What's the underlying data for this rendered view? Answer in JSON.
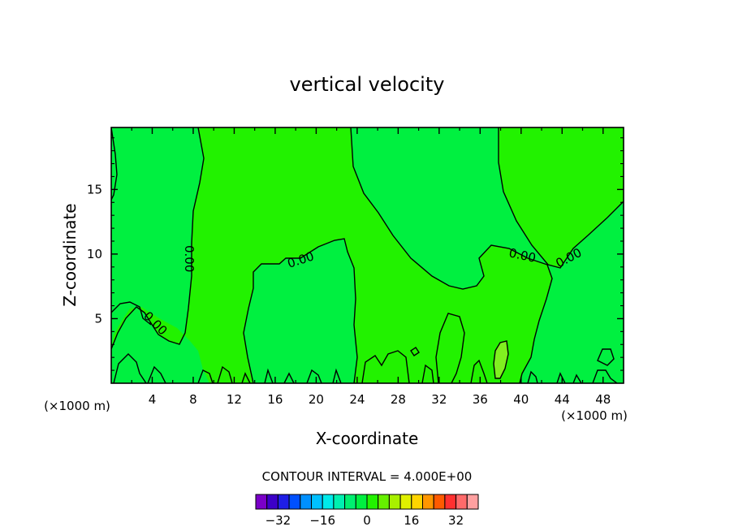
{
  "chart_data": {
    "type": "contour",
    "title": "vertical velocity",
    "xlabel": "X-coordinate",
    "ylabel": "Z-coordinate",
    "x_unit_left": "(×1000 m)",
    "x_unit_right": "(×1000 m)",
    "xlim": [
      0,
      50
    ],
    "ylim": [
      0,
      19.8
    ],
    "x_ticks": [
      4,
      8,
      12,
      16,
      20,
      24,
      28,
      32,
      36,
      40,
      44,
      48
    ],
    "y_ticks": [
      5,
      10,
      15
    ],
    "contour_labels": [
      "0.00",
      "0.00",
      "0.00",
      "0.00",
      "0.00"
    ],
    "contour_interval_text": "CONTOUR INTERVAL = 4.000E+00",
    "colorbar": {
      "levels": [
        -36,
        -32,
        -28,
        -24,
        -20,
        -16,
        -12,
        -8,
        -4,
        0,
        4,
        8,
        12,
        16,
        20,
        24,
        28,
        32,
        36
      ],
      "tick_values": [
        -32,
        -16,
        0,
        16,
        32
      ],
      "tick_labels": [
        "−32",
        "−16",
        "0",
        "16",
        "32"
      ],
      "colors": [
        "#7a00c8",
        "#3c00c8",
        "#1e1ee6",
        "#0050ff",
        "#0090ff",
        "#00c0ff",
        "#00eaea",
        "#00f0b0",
        "#00f070",
        "#00f040",
        "#22f200",
        "#66f000",
        "#a8f000",
        "#e0f000",
        "#ffd400",
        "#ff9600",
        "#ff5a00",
        "#ff3030",
        "#ff6a6a",
        "#ffa0a0"
      ]
    },
    "regions": {
      "negative_color": "#00f040",
      "positive_color": "#22f200",
      "high_color": "#80f020"
    }
  }
}
